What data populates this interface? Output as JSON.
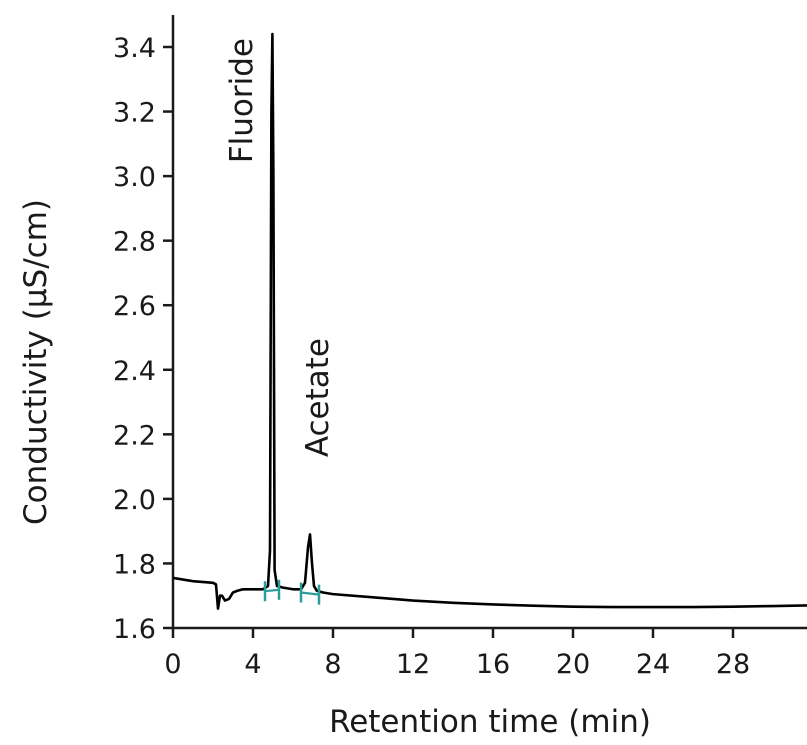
{
  "chart_data": {
    "type": "line",
    "title": "",
    "xlabel": "Retention time (min)",
    "ylabel": "Conductivity (µS/cm)",
    "xlim": [
      0,
      31.7
    ],
    "ylim": [
      1.6,
      3.45
    ],
    "x_ticks": [
      "0",
      "4",
      "8",
      "12",
      "16",
      "20",
      "24",
      "28"
    ],
    "y_ticks": [
      "1.6",
      "1.8",
      "2.0",
      "2.2",
      "2.4",
      "2.6",
      "2.8",
      "3.0",
      "3.2",
      "3.4"
    ],
    "grid": false,
    "series": [
      {
        "x": [
          0,
          1.0,
          2.0,
          2.15,
          2.25,
          2.35,
          2.45,
          2.6,
          2.8,
          3.0,
          3.2,
          3.5,
          4.0,
          4.5,
          4.75,
          4.85,
          4.92,
          4.97,
          5.02,
          5.08,
          5.2,
          5.5,
          6.0,
          6.4,
          6.6,
          6.75,
          6.85,
          6.95,
          7.05,
          7.2,
          7.5,
          8.0,
          10,
          12,
          14,
          16,
          18,
          20,
          22,
          24,
          26,
          28,
          30,
          31.7
        ],
        "y": [
          1.755,
          1.745,
          1.74,
          1.735,
          1.66,
          1.7,
          1.7,
          1.685,
          1.69,
          1.71,
          1.715,
          1.72,
          1.72,
          1.72,
          1.73,
          1.84,
          3.2,
          3.44,
          3.0,
          1.78,
          1.73,
          1.725,
          1.72,
          1.72,
          1.74,
          1.85,
          1.89,
          1.8,
          1.73,
          1.715,
          1.71,
          1.705,
          1.695,
          1.685,
          1.678,
          1.673,
          1.669,
          1.666,
          1.665,
          1.665,
          1.665,
          1.666,
          1.668,
          1.67
        ]
      }
    ],
    "annotations": [
      {
        "text": "Fluoride",
        "x": 4.95
      },
      {
        "text": "Acetate",
        "x": 6.85
      }
    ],
    "integration_marks": [
      {
        "start": 4.6,
        "end": 5.3
      },
      {
        "start": 6.4,
        "end": 7.3
      }
    ],
    "colors": {
      "line": "#000000",
      "axis": "#1a1a1a",
      "marks": "#2a9d9a"
    }
  }
}
